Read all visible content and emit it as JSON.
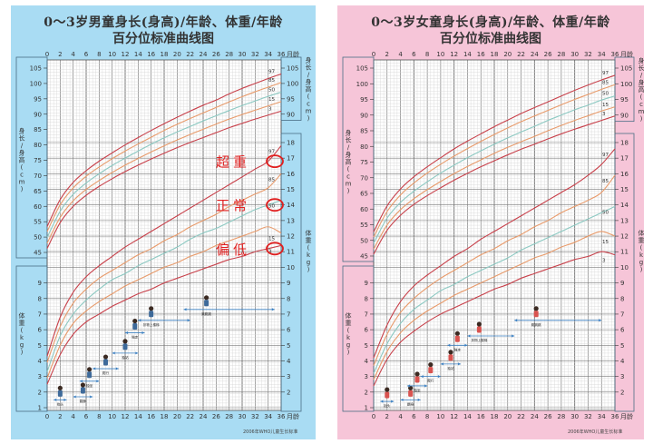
{
  "boy_panel": {
    "title_line1": "0～3岁男童身长(身高)/年龄、体重/年龄",
    "title_line2": "百分位标准曲线图",
    "background": "#a9dcf3",
    "footnote": "2006年WHO儿童生长标准",
    "annotations": [
      {
        "label": "超重",
        "percentile": "97",
        "color": "#e02020"
      },
      {
        "label": "正常",
        "percentile": "50",
        "color": "#e02020"
      },
      {
        "label": "偏低",
        "percentile": "3",
        "color": "#e02020"
      }
    ]
  },
  "girl_panel": {
    "title_line1": "0～3岁女童身长(身高)/年龄、体重/年龄",
    "title_line2": "百分位标准曲线图",
    "background": "#f6c5d8",
    "footnote": "2006年WHO儿童生长标准"
  },
  "axis_labels": {
    "x_unit": "月龄",
    "length_label": "身长/身高 (cm)",
    "weight_label": "体重 (kg)"
  },
  "chart_data": [
    {
      "type": "line",
      "title": "0～3岁男童身长(身高)/年龄 百分位标准曲线",
      "xlabel": "月龄",
      "ylabel": "身长/身高 (cm)",
      "x": [
        0,
        2,
        4,
        6,
        8,
        10,
        12,
        14,
        16,
        18,
        20,
        22,
        24,
        26,
        28,
        30,
        32,
        34,
        36
      ],
      "xlim": [
        0,
        36
      ],
      "ylim": [
        45,
        105
      ],
      "left_ticks": [
        45,
        50,
        55,
        60,
        65,
        70,
        75,
        80,
        85,
        90,
        95,
        100,
        105
      ],
      "right_ticks": [
        90,
        95,
        100,
        105
      ],
      "grid": true,
      "series": [
        {
          "name": "97",
          "values": [
            53.4,
            62.2,
            67.8,
            71.6,
            74.7,
            77.4,
            80.0,
            82.4,
            84.7,
            86.9,
            89.0,
            91.0,
            92.9,
            94.6,
            96.6,
            98.4,
            100.0,
            101.6,
            103.1
          ],
          "color": "#c8404a"
        },
        {
          "name": "85",
          "values": [
            51.8,
            60.5,
            66.0,
            69.8,
            72.8,
            75.5,
            78.0,
            80.3,
            82.5,
            84.7,
            86.7,
            88.6,
            90.4,
            92.2,
            94.0,
            95.7,
            97.3,
            98.8,
            100.3
          ],
          "color": "#e89a6a"
        },
        {
          "name": "50",
          "values": [
            49.9,
            58.4,
            63.9,
            67.6,
            70.6,
            73.3,
            75.7,
            78.0,
            80.2,
            82.3,
            84.2,
            86.0,
            87.8,
            89.5,
            91.2,
            92.8,
            94.3,
            95.8,
            97.2
          ],
          "color": "#8cc9c2"
        },
        {
          "name": "15",
          "values": [
            48.0,
            56.4,
            61.8,
            65.5,
            68.4,
            71.0,
            73.4,
            75.6,
            77.7,
            79.7,
            81.6,
            83.4,
            85.1,
            86.8,
            88.4,
            89.9,
            91.3,
            92.7,
            94.1
          ],
          "color": "#e89a6a"
        },
        {
          "name": "3",
          "values": [
            46.3,
            54.7,
            60.0,
            63.6,
            66.5,
            69.0,
            71.3,
            73.4,
            75.4,
            77.3,
            79.1,
            80.8,
            82.4,
            84.0,
            85.6,
            87.0,
            88.4,
            89.7,
            91.0
          ],
          "color": "#c8404a"
        }
      ]
    },
    {
      "type": "line",
      "title": "0～3岁男童体重/年龄 百分位标准曲线",
      "xlabel": "月龄",
      "ylabel": "体重 (kg)",
      "x": [
        0,
        2,
        4,
        6,
        8,
        10,
        12,
        14,
        16,
        18,
        20,
        22,
        24,
        26,
        28,
        30,
        32,
        34,
        36
      ],
      "xlim": [
        0,
        36
      ],
      "ylim": [
        1,
        18
      ],
      "left_ticks": [
        1,
        2,
        3,
        4,
        5,
        6,
        7,
        8,
        9
      ],
      "right_ticks": [
        2,
        3,
        4,
        5,
        6,
        7,
        8,
        9,
        10,
        11,
        12,
        13,
        14,
        15,
        16,
        17,
        18
      ],
      "grid": true,
      "series": [
        {
          "name": "97",
          "values": [
            4.3,
            6.8,
            8.4,
            9.4,
            10.1,
            10.7,
            11.3,
            11.8,
            12.3,
            12.8,
            13.3,
            13.8,
            14.3,
            14.8,
            15.3,
            15.8,
            16.3,
            16.8,
            17.8
          ],
          "color": "#c8404a"
        },
        {
          "name": "85",
          "values": [
            3.9,
            6.2,
            7.7,
            8.6,
            9.3,
            9.8,
            10.3,
            10.8,
            11.2,
            11.7,
            12.1,
            12.6,
            13.0,
            13.4,
            13.9,
            14.3,
            14.7,
            15.1,
            16.0
          ],
          "color": "#e89a6a"
        },
        {
          "name": "50",
          "values": [
            3.3,
            5.6,
            7.0,
            7.9,
            8.6,
            9.2,
            9.6,
            10.1,
            10.5,
            10.9,
            11.3,
            11.8,
            12.2,
            12.5,
            12.9,
            13.3,
            13.7,
            14.0,
            14.3
          ],
          "color": "#8cc9c2"
        },
        {
          "name": "15",
          "values": [
            2.9,
            5.0,
            6.4,
            7.2,
            7.8,
            8.3,
            8.8,
            9.2,
            9.6,
            10.0,
            10.3,
            10.7,
            11.0,
            11.4,
            11.7,
            12.0,
            12.3,
            12.6,
            12.2
          ],
          "color": "#e89a6a"
        },
        {
          "name": "3",
          "values": [
            2.5,
            4.4,
            5.7,
            6.5,
            7.0,
            7.5,
            7.9,
            8.3,
            8.6,
            9.0,
            9.3,
            9.6,
            9.9,
            10.2,
            10.5,
            10.7,
            11.0,
            11.2,
            11.4
          ],
          "color": "#c8404a"
        }
      ],
      "milestones": [
        {
          "label": "抬头",
          "age_range": [
            1,
            3
          ],
          "weight": 1.5
        },
        {
          "label": "翻身",
          "age_range": [
            4,
            7
          ],
          "weight": 1.7
        },
        {
          "label": "独坐",
          "age_range": [
            5,
            8
          ],
          "weight": 2.7
        },
        {
          "label": "爬行",
          "age_range": [
            7,
            11
          ],
          "weight": 3.5
        },
        {
          "label": "独站",
          "age_range": [
            10,
            14
          ],
          "weight": 4.5
        },
        {
          "label": "独走",
          "age_range": [
            12,
            15
          ],
          "weight": 5.8
        },
        {
          "label": "扶物上楼梯",
          "age_range": [
            14,
            22
          ],
          "weight": 6.6
        },
        {
          "label": "跳跳跳",
          "age_range": [
            21,
            35
          ],
          "weight": 7.3
        }
      ]
    },
    {
      "type": "line",
      "title": "0～3岁女童身长(身高)/年龄 百分位标准曲线",
      "xlabel": "月龄",
      "ylabel": "身长/身高 (cm)",
      "x": [
        0,
        2,
        4,
        6,
        8,
        10,
        12,
        14,
        16,
        18,
        20,
        22,
        24,
        26,
        28,
        30,
        32,
        34,
        36
      ],
      "xlim": [
        0,
        36
      ],
      "ylim": [
        45,
        105
      ],
      "left_ticks": [
        45,
        50,
        55,
        60,
        65,
        70,
        75,
        80,
        85,
        90,
        95,
        100,
        105
      ],
      "right_ticks": [
        90,
        95,
        100,
        105
      ],
      "grid": true,
      "series": [
        {
          "name": "97",
          "values": [
            52.7,
            61.0,
            66.4,
            70.3,
            73.5,
            76.4,
            79.2,
            81.7,
            84.0,
            86.3,
            88.4,
            90.5,
            92.4,
            94.2,
            96.1,
            97.9,
            99.6,
            101.2,
            102.7
          ],
          "color": "#c8404a"
        },
        {
          "name": "85",
          "values": [
            51.1,
            59.2,
            64.5,
            68.3,
            71.5,
            74.3,
            76.9,
            79.3,
            81.6,
            83.8,
            85.9,
            87.9,
            89.7,
            91.5,
            93.3,
            95.0,
            96.6,
            98.2,
            99.7
          ],
          "color": "#e89a6a"
        },
        {
          "name": "50",
          "values": [
            49.1,
            57.1,
            62.1,
            65.7,
            68.7,
            71.5,
            74.0,
            76.4,
            78.6,
            80.7,
            82.7,
            84.6,
            86.4,
            88.3,
            90.0,
            91.7,
            93.2,
            94.8,
            96.1
          ],
          "color": "#8cc9c2"
        },
        {
          "name": "15",
          "values": [
            47.2,
            54.9,
            59.8,
            63.3,
            66.2,
            68.8,
            71.3,
            73.6,
            75.7,
            77.8,
            79.7,
            81.5,
            83.2,
            85.0,
            86.7,
            88.3,
            89.8,
            91.3,
            92.6
          ],
          "color": "#e89a6a"
        },
        {
          "name": "3",
          "values": [
            45.6,
            53.2,
            58.0,
            61.5,
            64.3,
            66.8,
            69.2,
            71.4,
            73.5,
            75.4,
            77.3,
            79.1,
            80.7,
            82.4,
            84.0,
            85.5,
            86.9,
            88.3,
            89.7
          ],
          "color": "#c8404a"
        }
      ]
    },
    {
      "type": "line",
      "title": "0～3岁女童体重/年龄 百分位标准曲线",
      "xlabel": "月龄",
      "ylabel": "体重 (kg)",
      "x": [
        0,
        2,
        4,
        6,
        8,
        10,
        12,
        14,
        16,
        18,
        20,
        22,
        24,
        26,
        28,
        30,
        32,
        34,
        36
      ],
      "xlim": [
        0,
        36
      ],
      "ylim": [
        1,
        18
      ],
      "left_ticks": [
        1,
        2,
        3,
        4,
        5,
        6,
        7,
        8,
        9
      ],
      "right_ticks": [
        2,
        3,
        4,
        5,
        6,
        7,
        8,
        9,
        10,
        11,
        12,
        13,
        14,
        15,
        16,
        17,
        18
      ],
      "grid": true,
      "series": [
        {
          "name": "97",
          "values": [
            4.2,
            6.3,
            7.8,
            8.8,
            9.5,
            10.1,
            10.7,
            11.2,
            11.8,
            12.3,
            12.8,
            13.3,
            13.8,
            14.3,
            14.8,
            15.3,
            15.9,
            16.6,
            17.6
          ],
          "color": "#c8404a"
        },
        {
          "name": "85",
          "values": [
            3.7,
            5.7,
            7.1,
            8.0,
            8.7,
            9.3,
            9.8,
            10.3,
            10.8,
            11.2,
            11.7,
            12.1,
            12.6,
            13.0,
            13.5,
            13.9,
            14.3,
            14.8,
            15.9
          ],
          "color": "#e89a6a"
        },
        {
          "name": "50",
          "values": [
            3.2,
            5.1,
            6.4,
            7.3,
            7.9,
            8.5,
            8.9,
            9.4,
            9.8,
            10.2,
            10.6,
            11.1,
            11.5,
            11.9,
            12.3,
            12.7,
            13.1,
            13.5,
            13.9
          ],
          "color": "#8cc9c2"
        },
        {
          "name": "15",
          "values": [
            2.8,
            4.6,
            5.8,
            6.6,
            7.2,
            7.7,
            8.2,
            8.6,
            9.0,
            9.4,
            9.8,
            10.2,
            10.6,
            10.9,
            11.3,
            11.6,
            12.0,
            12.3,
            12.0
          ],
          "color": "#e89a6a"
        },
        {
          "name": "3",
          "values": [
            2.4,
            4.1,
            5.2,
            5.9,
            6.5,
            7.0,
            7.4,
            7.8,
            8.2,
            8.6,
            8.9,
            9.3,
            9.6,
            9.9,
            10.2,
            10.5,
            10.7,
            11.0,
            10.8
          ],
          "color": "#c8404a"
        }
      ],
      "milestones": [
        {
          "label": "抬头",
          "age_range": [
            1,
            3
          ],
          "weight": 1.4
        },
        {
          "label": "翻身",
          "age_range": [
            4,
            7
          ],
          "weight": 1.5
        },
        {
          "label": "独坐",
          "age_range": [
            5,
            8
          ],
          "weight": 2.4
        },
        {
          "label": "爬行",
          "age_range": [
            7,
            10
          ],
          "weight": 3.0
        },
        {
          "label": "独站",
          "age_range": [
            10,
            13
          ],
          "weight": 3.8
        },
        {
          "label": "独走",
          "age_range": [
            11,
            14
          ],
          "weight": 5.0
        },
        {
          "label": "扶物上楼梯",
          "age_range": [
            14,
            21
          ],
          "weight": 5.6
        },
        {
          "label": "跳跳跳",
          "age_range": [
            21,
            34
          ],
          "weight": 6.6
        }
      ]
    }
  ]
}
